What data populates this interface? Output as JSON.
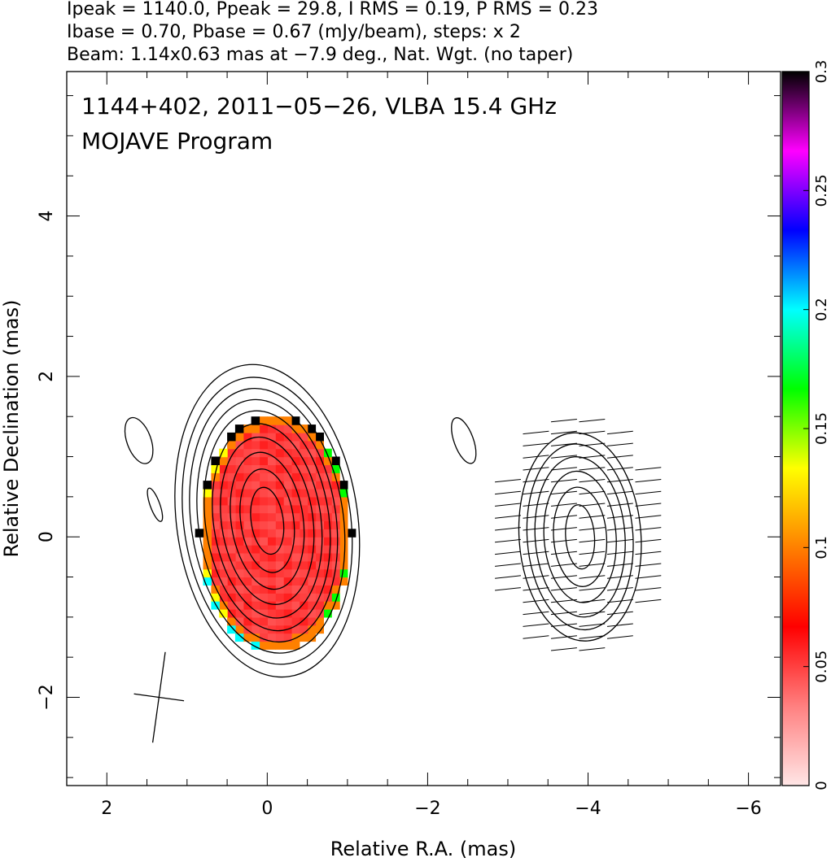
{
  "header": {
    "line1": "Ipeak = 1140.0, Ppeak = 29.8, I RMS = 0.19, P RMS = 0.23",
    "line2": "Ibase = 0.70, Pbase = 0.67 (mJy/beam), steps: x 2",
    "line3": "Beam: 1.14x0.63 mas at −7.9 deg., Nat. Wgt. (no taper)"
  },
  "chart_data": {
    "type": "heatmap",
    "title": "1144+402, 2011−05−26, VLBA 15.4 GHz",
    "subtitle": "MOJAVE Program",
    "xlabel": "Relative R.A. (mas)",
    "ylabel": "Relative Declination (mas)",
    "xlim": [
      2.5,
      -6.4
    ],
    "ylim": [
      -3.1,
      5.8
    ],
    "x_ticks": [
      2,
      0,
      -2,
      -4,
      -6
    ],
    "x_tick_labels": [
      "2",
      "0",
      "−2",
      "−4",
      "−6"
    ],
    "y_ticks": [
      -2,
      0,
      2,
      4
    ],
    "y_tick_labels": [
      "−2",
      "0",
      "2",
      "4"
    ],
    "colorbar": {
      "range": [
        0,
        0.3
      ],
      "ticks": [
        0,
        0.05,
        0.1,
        0.15,
        0.2,
        0.25,
        0.3
      ],
      "tick_labels": [
        "0",
        "0.05",
        "0.1",
        "0.15",
        "0.2",
        "0.25",
        "0.3"
      ],
      "stops": [
        "#ffe6e6",
        "#ff8080",
        "#ff0000",
        "#ff8000",
        "#ffff00",
        "#00ff00",
        "#00ffff",
        "#0000ff",
        "#ff00ff",
        "#000000"
      ]
    },
    "left_panel": {
      "center": [
        0.0,
        0.2
      ],
      "contour_radii": [
        [
          0.2,
          0.42
        ],
        [
          0.33,
          0.65
        ],
        [
          0.45,
          0.86
        ],
        [
          0.57,
          1.05
        ],
        [
          0.67,
          1.22
        ],
        [
          0.77,
          1.38
        ],
        [
          0.86,
          1.52
        ],
        [
          0.95,
          1.66
        ],
        [
          1.04,
          1.8
        ],
        [
          1.13,
          1.96
        ]
      ],
      "contour_tilt_deg": -8,
      "fraction_map_center": [
        -0.05,
        0.0
      ],
      "fraction_map_radii": [
        0.95,
        1.5
      ]
    },
    "right_panel": {
      "center": [
        -3.9,
        0.0
      ],
      "contour_radii": [
        [
          0.18,
          0.4
        ],
        [
          0.33,
          0.62
        ],
        [
          0.45,
          0.82
        ],
        [
          0.56,
          1.0
        ],
        [
          0.66,
          1.16
        ],
        [
          0.76,
          1.3
        ]
      ],
      "evpa_vectors": "horizontal EVPA sticks across polarized region"
    },
    "beam": {
      "center": [
        1.35,
        -2.0
      ],
      "major_mas": 1.14,
      "minor_mas": 0.63,
      "pa_deg": -7.9
    }
  }
}
